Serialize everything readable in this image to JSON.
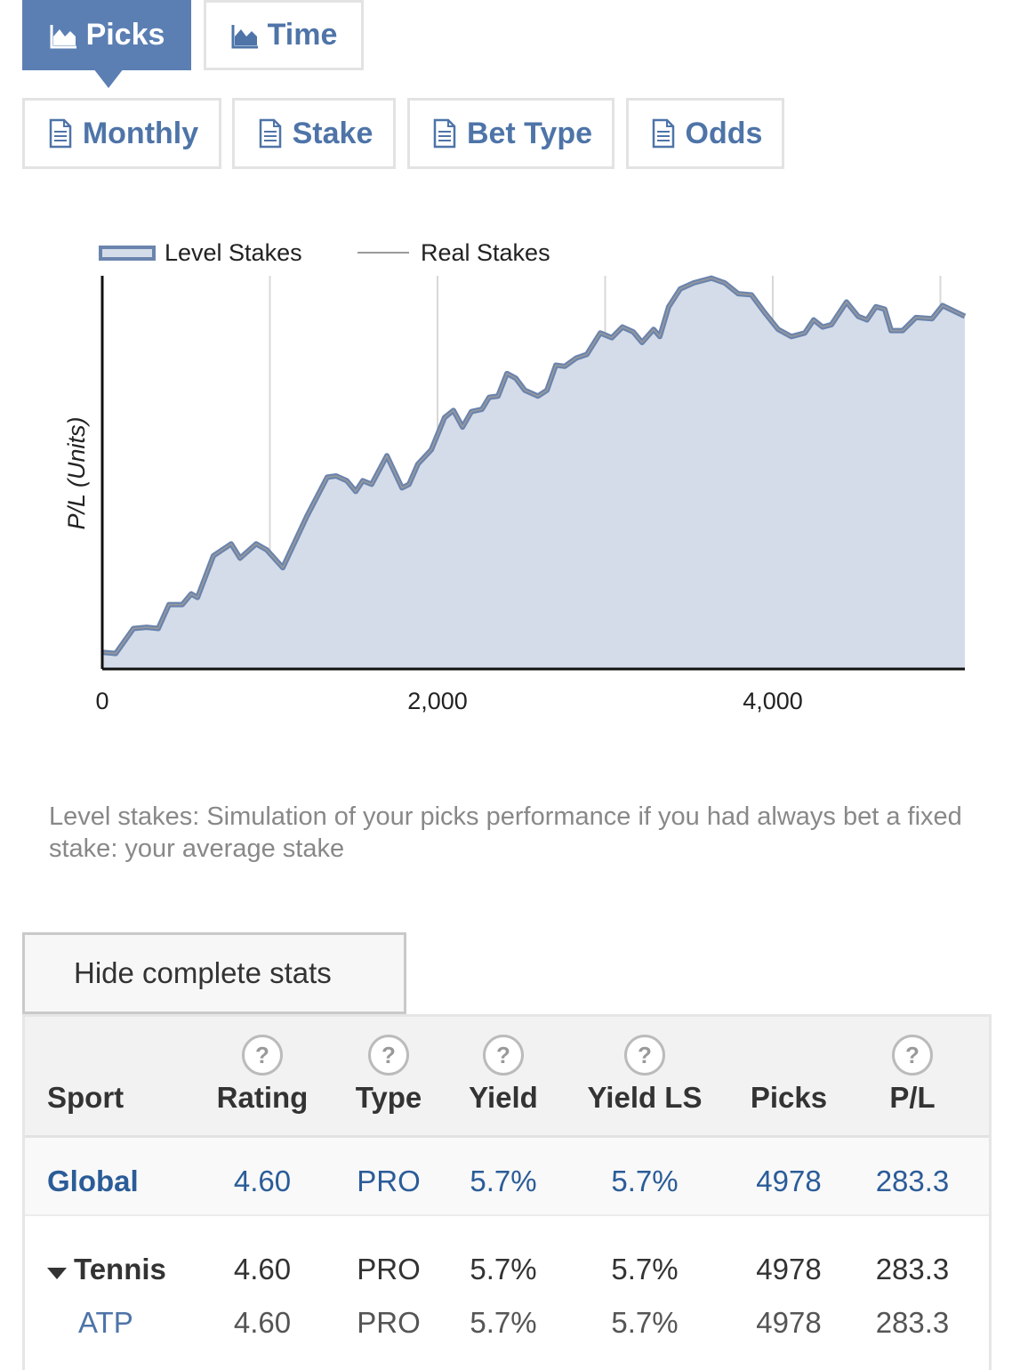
{
  "tabs": [
    "Picks",
    "Time"
  ],
  "reports": [
    "Monthly",
    "Stake",
    "Bet Type",
    "Odds"
  ],
  "chart_data": {
    "type": "line",
    "ylabel": "P/L (Units)",
    "x": [
      0,
      80,
      186,
      265,
      334,
      398,
      477,
      531,
      568,
      663,
      769,
      822,
      918,
      981,
      1077,
      1220,
      1342,
      1395,
      1459,
      1512,
      1554,
      1607,
      1698,
      1788,
      1830,
      1883,
      1963,
      2042,
      2095,
      2149,
      2202,
      2265,
      2308,
      2361,
      2414,
      2467,
      2520,
      2599,
      2653,
      2706,
      2759,
      2828,
      2891,
      2971,
      3040,
      3103,
      3167,
      3220,
      3289,
      3326,
      3379,
      3448,
      3528,
      3634,
      3714,
      3793,
      3873,
      3952,
      4032,
      4111,
      4191,
      4244,
      4297,
      4350,
      4440,
      4509,
      4562,
      4615,
      4668,
      4706,
      4775,
      4854,
      4950,
      5013,
      5146
    ],
    "series": [
      {
        "name": "Level Stakes",
        "color": "#6b84ad",
        "fill": "#d4dce9",
        "values": [
          1,
          0,
          21,
          22,
          21,
          41,
          41,
          50,
          47,
          82,
          92,
          80,
          92,
          87,
          72,
          115,
          148,
          149,
          145,
          136,
          145,
          142,
          166,
          139,
          142,
          159,
          171,
          198,
          204,
          190,
          203,
          205,
          215,
          216,
          235,
          231,
          221,
          216,
          221,
          242,
          241,
          248,
          251,
          269,
          265,
          274,
          270,
          261,
          272,
          266,
          291,
          306,
          311,
          315,
          311,
          302,
          301,
          286,
          272,
          266,
          269,
          280,
          274,
          276,
          295,
          283,
          280,
          291,
          289,
          271,
          271,
          282,
          281,
          292,
          283
        ]
      },
      {
        "name": "Real Stakes",
        "color": "#9a9a9a",
        "values": [
          1,
          0,
          21,
          22,
          21,
          41,
          41,
          50,
          47,
          82,
          92,
          80,
          92,
          87,
          72,
          115,
          148,
          149,
          145,
          136,
          145,
          142,
          166,
          139,
          142,
          159,
          171,
          198,
          204,
          190,
          203,
          205,
          215,
          216,
          235,
          231,
          221,
          216,
          221,
          242,
          241,
          248,
          251,
          269,
          265,
          274,
          270,
          261,
          272,
          266,
          291,
          306,
          311,
          315,
          311,
          302,
          301,
          286,
          272,
          266,
          269,
          280,
          274,
          276,
          295,
          283,
          280,
          291,
          289,
          271,
          271,
          282,
          281,
          292,
          283
        ]
      }
    ],
    "xlim": [
      0,
      5146
    ],
    "ylim": [
      -13,
      317
    ],
    "xticks": [
      0,
      {
        "value": 2000,
        "label": "2,000"
      },
      {
        "value": 4000,
        "label": "4,000"
      }
    ],
    "xgrid": [
      1000,
      2000,
      3000,
      4000,
      5000
    ],
    "grid": true,
    "legend": "top"
  },
  "note": "Level stakes: Simulation of your picks performance if you had always bet a fixed stake: your average stake",
  "button": "Hide complete stats",
  "table": {
    "columns": [
      "Sport",
      "Rating",
      "Type",
      "Yield",
      "Yield LS",
      "Picks",
      "P/L"
    ],
    "rows": [
      [
        "Global",
        "4.60",
        "PRO",
        "5.7%",
        "5.7%",
        "4978",
        "283.3"
      ],
      [
        "Tennis",
        "4.60",
        "PRO",
        "5.7%",
        "5.7%",
        "4978",
        "283.3"
      ],
      [
        "ATP",
        "4.60",
        "PRO",
        "5.7%",
        "5.7%",
        "4978",
        "283.3"
      ]
    ]
  }
}
